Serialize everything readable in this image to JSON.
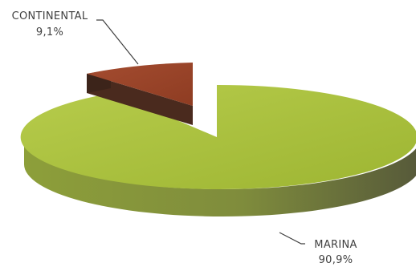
{
  "chart_data": {
    "type": "pie",
    "style": "3d-exploded",
    "slices": [
      {
        "name": "CONTINENTAL",
        "percent_label": "9,1%",
        "value": 9.1,
        "color": "#a0492c",
        "side_color": "#4a2a1e"
      },
      {
        "name": "MARINA",
        "percent_label": "90,9%",
        "value": 90.9,
        "color": "#a8bf3a",
        "side_color": "#6f7a3a"
      }
    ]
  }
}
